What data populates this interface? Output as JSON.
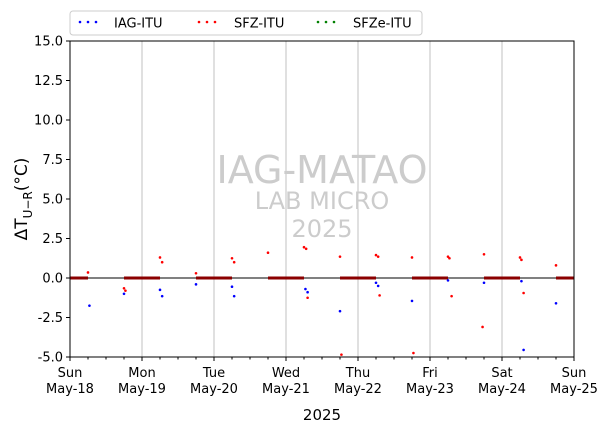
{
  "chart_data": {
    "type": "scatter",
    "xlabel": "2025",
    "ylabel": "ΔT_{U−R}(°C)",
    "ylim": [
      -5,
      15
    ],
    "yticks": [
      "-5.0",
      "-2.5",
      "0.0",
      "2.5",
      "5.0",
      "7.5",
      "10.0",
      "12.5",
      "15.0"
    ],
    "xlim": [
      0,
      7
    ],
    "xticks": [
      {
        "day": "Sun",
        "date": "May-18"
      },
      {
        "day": "Mon",
        "date": "May-19"
      },
      {
        "day": "Tue",
        "date": "May-20"
      },
      {
        "day": "Wed",
        "date": "May-21"
      },
      {
        "day": "Thu",
        "date": "May-22"
      },
      {
        "day": "Fri",
        "date": "May-23"
      },
      {
        "day": "Sat",
        "date": "May-24"
      },
      {
        "day": "Sun",
        "date": "May-25"
      }
    ],
    "vertical_grid": true,
    "legend_placement": "top, above plot",
    "watermark": [
      "IAG-MATAO",
      "LAB MICRO",
      "2025"
    ],
    "zero_line_color": "#000000",
    "night_band_color": "#8b0000",
    "series": [
      {
        "name": "IAG-ITU",
        "color": "#0000ff",
        "points": [
          [
            0.27,
            -1.75
          ],
          [
            0.75,
            -1.0
          ],
          [
            1.25,
            -0.75
          ],
          [
            1.28,
            -1.15
          ],
          [
            1.75,
            -0.4
          ],
          [
            2.25,
            -0.55
          ],
          [
            2.28,
            -1.15
          ],
          [
            3.27,
            -0.7
          ],
          [
            3.3,
            -0.9
          ],
          [
            3.75,
            -2.1
          ],
          [
            4.25,
            -0.3
          ],
          [
            4.28,
            -0.5
          ],
          [
            4.75,
            -1.45
          ],
          [
            5.25,
            -0.15
          ],
          [
            5.75,
            -0.3
          ],
          [
            6.27,
            -0.2
          ],
          [
            6.3,
            -4.55
          ],
          [
            6.75,
            -1.6
          ]
        ]
      },
      {
        "name": "SFZ-ITU",
        "color": "#ff0000",
        "points": [
          [
            0.25,
            0.35
          ],
          [
            0.75,
            -0.65
          ],
          [
            0.77,
            -0.8
          ],
          [
            1.25,
            1.3
          ],
          [
            1.28,
            1.0
          ],
          [
            1.75,
            0.3
          ],
          [
            2.25,
            1.25
          ],
          [
            2.28,
            1.0
          ],
          [
            2.75,
            1.6
          ],
          [
            3.25,
            1.95
          ],
          [
            3.28,
            1.85
          ],
          [
            3.3,
            -1.25
          ],
          [
            3.75,
            1.35
          ],
          [
            3.77,
            -4.85
          ],
          [
            4.25,
            1.45
          ],
          [
            4.28,
            1.35
          ],
          [
            4.3,
            -1.1
          ],
          [
            4.75,
            1.3
          ],
          [
            4.77,
            -4.75
          ],
          [
            5.25,
            1.35
          ],
          [
            5.27,
            1.25
          ],
          [
            5.3,
            -1.15
          ],
          [
            5.75,
            1.5
          ],
          [
            5.73,
            -3.1
          ],
          [
            6.25,
            1.3
          ],
          [
            6.27,
            1.15
          ],
          [
            6.3,
            -0.95
          ],
          [
            6.75,
            0.8
          ]
        ]
      },
      {
        "name": "SFZe-ITU",
        "color": "#008000",
        "points": []
      }
    ],
    "night_bands": [
      [
        0,
        0.25
      ],
      [
        0.75,
        1.25
      ],
      [
        1.75,
        2.25
      ],
      [
        2.75,
        3.25
      ],
      [
        3.75,
        4.25
      ],
      [
        4.75,
        5.25
      ],
      [
        5.75,
        6.25
      ],
      [
        6.75,
        7
      ]
    ]
  }
}
